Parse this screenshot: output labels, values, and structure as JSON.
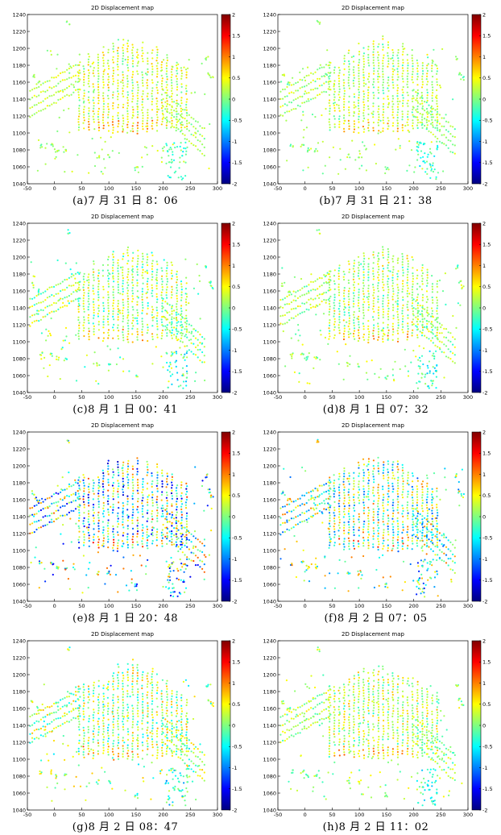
{
  "chart_data": [
    {
      "type": "scatter",
      "title": "2D Displacement map",
      "caption": "(a)7 月 31 日 8：06",
      "xlim": [
        -50,
        300
      ],
      "ylim": [
        1040,
        1240
      ],
      "xticks": [
        -50,
        0,
        50,
        100,
        150,
        200,
        250,
        300
      ],
      "yticks": [
        1040,
        1060,
        1080,
        1100,
        1120,
        1140,
        1160,
        1180,
        1200,
        1220,
        1240
      ],
      "colorbar": {
        "range": [
          -2,
          2
        ],
        "ticks": [
          2,
          1.5,
          1,
          0.5,
          0,
          -0.5,
          -1,
          -1.5,
          -2
        ],
        "colormap": "jet"
      },
      "point_spread": 0.3,
      "bias": 0.5,
      "grid": false
    },
    {
      "type": "scatter",
      "title": "2D Displacement map",
      "caption": "(b)7 月 31 日 21：38",
      "xlim": [
        -50,
        300
      ],
      "ylim": [
        1040,
        1240
      ],
      "xticks": [
        -50,
        0,
        50,
        100,
        150,
        200,
        250,
        300
      ],
      "yticks": [
        1040,
        1060,
        1080,
        1100,
        1120,
        1140,
        1160,
        1180,
        1200,
        1220,
        1240
      ],
      "colorbar": {
        "range": [
          -2,
          2
        ],
        "ticks": [
          2,
          1.5,
          1,
          0.5,
          0,
          -0.5,
          -1,
          -1.5,
          -2
        ],
        "colormap": "jet"
      },
      "point_spread": 0.35,
      "bias": 0.3,
      "grid": false
    },
    {
      "type": "scatter",
      "title": "2D Displacement map",
      "caption": "(c)8 月 1 日 00：41",
      "xlim": [
        -50,
        300
      ],
      "ylim": [
        1040,
        1240
      ],
      "xticks": [
        -50,
        0,
        50,
        100,
        150,
        200,
        250,
        300
      ],
      "yticks": [
        1040,
        1060,
        1080,
        1100,
        1120,
        1140,
        1160,
        1180,
        1200,
        1220,
        1240
      ],
      "colorbar": {
        "range": [
          -2,
          2
        ],
        "ticks": [
          2,
          1.5,
          1,
          0.5,
          0,
          -0.5,
          -1,
          -1.5,
          -2
        ],
        "colormap": "jet"
      },
      "point_spread": 0.55,
      "bias": 0.2,
      "grid": false
    },
    {
      "type": "scatter",
      "title": "2D Displacement map",
      "caption": "(d)8 月 1 日 07：32",
      "xlim": [
        -50,
        300
      ],
      "ylim": [
        1040,
        1240
      ],
      "xticks": [
        -50,
        0,
        50,
        100,
        150,
        200,
        250,
        300
      ],
      "yticks": [
        1040,
        1060,
        1080,
        1100,
        1120,
        1140,
        1160,
        1180,
        1200,
        1220,
        1240
      ],
      "colorbar": {
        "range": [
          -2,
          2
        ],
        "ticks": [
          2,
          1.5,
          1,
          0.5,
          0,
          -0.5,
          -1,
          -1.5,
          -2
        ],
        "colormap": "jet"
      },
      "point_spread": 0.45,
      "bias": 0.3,
      "grid": false
    },
    {
      "type": "scatter",
      "title": "2D Displacement map",
      "caption": "(e)8 月 1 日 20：48",
      "xlim": [
        -50,
        300
      ],
      "ylim": [
        1040,
        1240
      ],
      "xticks": [
        -50,
        0,
        50,
        100,
        150,
        200,
        250,
        300
      ],
      "yticks": [
        1040,
        1060,
        1080,
        1100,
        1120,
        1140,
        1160,
        1180,
        1200,
        1220,
        1240
      ],
      "colorbar": {
        "range": [
          -2,
          2
        ],
        "ticks": [
          2,
          1.5,
          1,
          0.5,
          0,
          -0.5,
          -1,
          -1.5,
          -2
        ],
        "colormap": "jet"
      },
      "point_spread": 1.4,
      "bias": -0.4,
      "grid": false
    },
    {
      "type": "scatter",
      "title": "2D Displacement map",
      "caption": "(f)8 月 2 日 07：05",
      "xlim": [
        -50,
        300
      ],
      "ylim": [
        1040,
        1240
      ],
      "xticks": [
        -50,
        0,
        50,
        100,
        150,
        200,
        250,
        300
      ],
      "yticks": [
        1040,
        1060,
        1080,
        1100,
        1120,
        1140,
        1160,
        1180,
        1200,
        1220,
        1240
      ],
      "colorbar": {
        "range": [
          -2,
          2
        ],
        "ticks": [
          2,
          1.5,
          1,
          0.5,
          0,
          -0.5,
          -1,
          -1.5,
          -2
        ],
        "colormap": "jet"
      },
      "point_spread": 1.1,
      "bias": -0.1,
      "grid": false
    },
    {
      "type": "scatter",
      "title": "2D Displacement map",
      "caption": "(g)8 月 2 日 08：47",
      "xlim": [
        -50,
        300
      ],
      "ylim": [
        1040,
        1240
      ],
      "xticks": [
        -50,
        0,
        50,
        100,
        150,
        200,
        250,
        300
      ],
      "yticks": [
        1040,
        1060,
        1080,
        1100,
        1120,
        1140,
        1160,
        1180,
        1200,
        1220,
        1240
      ],
      "colorbar": {
        "range": [
          -2,
          2
        ],
        "ticks": [
          2,
          1.5,
          1,
          0.5,
          0,
          -0.5,
          -1,
          -1.5,
          -2
        ],
        "colormap": "jet"
      },
      "point_spread": 0.7,
      "bias": 0.2,
      "grid": false
    },
    {
      "type": "scatter",
      "title": "2D Displacement map",
      "caption": "(h)8 月 2 日 11：02",
      "xlim": [
        -50,
        300
      ],
      "ylim": [
        1040,
        1240
      ],
      "xticks": [
        -50,
        0,
        50,
        100,
        150,
        200,
        250,
        300
      ],
      "yticks": [
        1040,
        1060,
        1080,
        1100,
        1120,
        1140,
        1160,
        1180,
        1200,
        1220,
        1240
      ],
      "colorbar": {
        "range": [
          -2,
          2
        ],
        "ticks": [
          2,
          1.5,
          1,
          0.5,
          0,
          -0.5,
          -1,
          -1.5,
          -2
        ],
        "colormap": "jet"
      },
      "point_spread": 0.45,
      "bias": 0.35,
      "grid": false
    }
  ]
}
